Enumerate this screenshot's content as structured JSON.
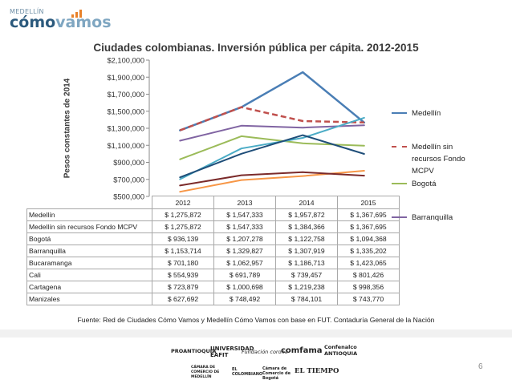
{
  "brand": {
    "city": "MEDELLÍN",
    "name_part1": "cómo",
    "name_part2": "vamos",
    "colors": {
      "dark": "#2c5a7d",
      "light": "#7fa6c1",
      "accent": "#e8822a"
    }
  },
  "chart_data": {
    "type": "line",
    "title": "Ciudades colombianas. Inversión pública per cápita.  2012-2015",
    "xlabel": "",
    "ylabel": "Pesos constantes de 2014",
    "categories": [
      "2012",
      "2013",
      "2014",
      "2015"
    ],
    "ylim": [
      500000,
      2100000
    ],
    "yticks": [
      500000,
      700000,
      900000,
      1100000,
      1300000,
      1500000,
      1700000,
      1900000,
      2100000
    ],
    "ytick_labels": [
      "$500,000",
      "$700,000",
      "$900,000",
      "$1,100,000",
      "$1,300,000",
      "$1,500,000",
      "$1,700,000",
      "$1,900,000",
      "$2,100,000"
    ],
    "grid": false,
    "legend_position": "right",
    "series": [
      {
        "name": "Medellín",
        "values": [
          1275872,
          1547333,
          1957872,
          1367695
        ],
        "labels": [
          "$ 1,275,872",
          "$ 1,547,333",
          "$ 1,957,872",
          "$ 1,367,695"
        ],
        "color": "#4a7eb5",
        "dash": "solid",
        "width": 2.5,
        "in_legend": true
      },
      {
        "name": "Medellín sin recursos Fondo MCPV",
        "values": [
          1275872,
          1547333,
          1384366,
          1367695
        ],
        "labels": [
          "$ 1,275,872",
          "$ 1,547,333",
          "$ 1,384,366",
          "$ 1,367,695"
        ],
        "color": "#c0504d",
        "dash": "dashed",
        "width": 2.5,
        "in_legend": true
      },
      {
        "name": "Bogotá",
        "values": [
          936139,
          1207278,
          1122758,
          1094368
        ],
        "labels": [
          "$ 936,139",
          "$ 1,207,278",
          "$ 1,122,758",
          "$ 1,094,368"
        ],
        "color": "#9bbb59",
        "dash": "solid",
        "width": 2,
        "in_legend": true
      },
      {
        "name": "Barranquilla",
        "values": [
          1153714,
          1329827,
          1307919,
          1335202
        ],
        "labels": [
          "$ 1,153,714",
          "$ 1,329,827",
          "$ 1,307,919",
          "$ 1,335,202"
        ],
        "color": "#8064a2",
        "dash": "solid",
        "width": 2,
        "in_legend": true
      },
      {
        "name": "Bucaramanga",
        "values": [
          701180,
          1062957,
          1186713,
          1423065
        ],
        "labels": [
          "$ 701,180",
          "$ 1,062,957",
          "$ 1,186,713",
          "$ 1,423,065"
        ],
        "color": "#4bacc6",
        "dash": "solid",
        "width": 2,
        "in_legend": false
      },
      {
        "name": "Cali",
        "values": [
          554939,
          691789,
          739457,
          801426
        ],
        "labels": [
          "$ 554,939",
          "$ 691,789",
          "$ 739,457",
          "$ 801,426"
        ],
        "color": "#f79646",
        "dash": "solid",
        "width": 2,
        "in_legend": false
      },
      {
        "name": "Cartagena",
        "values": [
          723879,
          1000698,
          1219238,
          998356
        ],
        "labels": [
          "$ 723,879",
          "$ 1,000,698",
          "$ 1,219,238",
          "$ 998,356"
        ],
        "color": "#1f4e79",
        "dash": "solid",
        "width": 2,
        "in_legend": false
      },
      {
        "name": "Manizales",
        "values": [
          627692,
          748492,
          784101,
          743770
        ],
        "labels": [
          "$ 627,692",
          "$ 748,492",
          "$ 784,101",
          "$ 743,770"
        ],
        "color": "#7b2a2a",
        "dash": "solid",
        "width": 2,
        "in_legend": false
      }
    ]
  },
  "legend": {
    "items": [
      {
        "label": "Medellín",
        "color": "#4a7eb5",
        "dash": "solid"
      },
      {
        "label": "Medellín sin recursos Fondo MCPV",
        "color": "#c0504d",
        "dash": "dashed"
      },
      {
        "label": "Bogotá",
        "color": "#9bbb59",
        "dash": "solid"
      },
      {
        "label": "Barranquilla",
        "color": "#8064a2",
        "dash": "solid"
      }
    ]
  },
  "source_note": "Fuente: Red de Ciudades Cómo Vamos y Medellín Cómo Vamos con base en FUT. Contaduría General de la Nación",
  "partners": [
    {
      "label": "PROANTIOQUIA",
      "color": "#2e7d32"
    },
    {
      "label": "UNIVERSIDAD EAFIT",
      "color": "#1a2f6b"
    },
    {
      "label": "Fundación corona",
      "color": "#c62828"
    },
    {
      "label": "comfama",
      "color": "#d81b60"
    },
    {
      "label": "Confenalco ANTIOQUIA",
      "color": "#2e7d32"
    },
    {
      "label": "CÁMARA DE COMERCIO DE MEDELLÍN",
      "color": "#333333"
    },
    {
      "label": "EL COLOMBIANO",
      "color": "#222222"
    },
    {
      "label": "Cámara de Comercio de Bogotá",
      "color": "#c62828"
    },
    {
      "label": "EL TIEMPO",
      "color": "#111111"
    }
  ],
  "page_number": "6"
}
